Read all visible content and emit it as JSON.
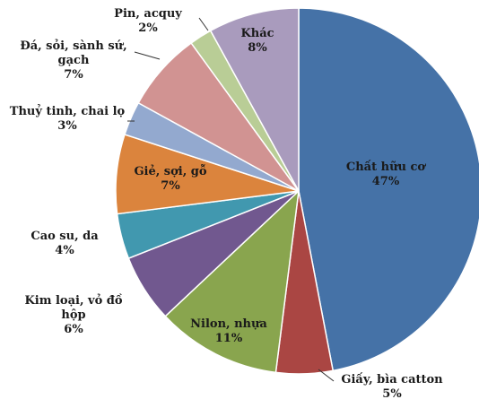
{
  "chart_data": {
    "type": "pie",
    "categories": [
      "Chất hữu cơ",
      "Giấy, bìa catton",
      "Nilon, nhựa",
      "Kim loại, vỏ đồ hộp",
      "Cao su, da",
      "Giẻ, sợi, gỗ",
      "Thuỷ tinh, chai lọ",
      "Đá, sỏi, sành sứ, gạch",
      "Pin, acquy",
      "Khác"
    ],
    "values": [
      47,
      5,
      11,
      6,
      4,
      7,
      3,
      7,
      2,
      8
    ],
    "value_labels": [
      "47%",
      "5%",
      "11%",
      "6%",
      "4%",
      "7%",
      "3%",
      "7%",
      "2%",
      "8%"
    ],
    "colors": [
      "#4572a7",
      "#aa4643",
      "#89a54e",
      "#71588f",
      "#4198af",
      "#db843d",
      "#93a9cf",
      "#d19392",
      "#b9cd96",
      "#a99bbd"
    ]
  }
}
